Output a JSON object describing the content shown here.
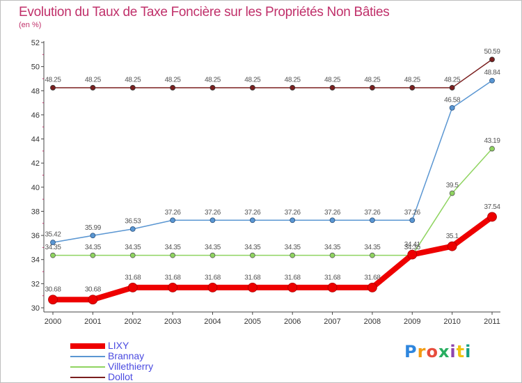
{
  "title": "Evolution du Taux de Taxe Foncière sur les Propriétés Non Bâties",
  "subtitle": "(en %)",
  "logo": "Proxiti",
  "chart_data": {
    "type": "line",
    "title": "Evolution du Taux de Taxe Foncière sur les Propriétés Non Bâties",
    "ylabel": "(en %)",
    "xlabel": "",
    "categories": [
      "2000",
      "2001",
      "2002",
      "2003",
      "2004",
      "2005",
      "2006",
      "2007",
      "2008",
      "2009",
      "2010",
      "2011"
    ],
    "ylim": [
      30,
      52
    ],
    "yticks": [
      30,
      32,
      34,
      36,
      38,
      40,
      42,
      44,
      46,
      48,
      50,
      52
    ],
    "grid": false,
    "legend_position": "bottom-left",
    "series": [
      {
        "name": "Dollot",
        "color": "#7a1e1e",
        "values": [
          48.25,
          48.25,
          48.25,
          48.25,
          48.25,
          48.25,
          48.25,
          48.25,
          48.25,
          48.25,
          48.25,
          50.59
        ],
        "labels": [
          "48.25",
          "48.25",
          "48.25",
          "48.25",
          "48.25",
          "48.25",
          "48.25",
          "48.25",
          "48.25",
          "48.25",
          "48.25",
          "50.59"
        ]
      },
      {
        "name": "Villethierry",
        "color": "#8fd460",
        "values": [
          34.35,
          34.35,
          34.35,
          34.35,
          34.35,
          34.35,
          34.35,
          34.35,
          34.35,
          34.35,
          39.5,
          43.19
        ],
        "labels": [
          "34.35",
          "34.35",
          "34.35",
          "34.35",
          "34.35",
          "34.35",
          "34.35",
          "34.35",
          "34.35",
          "34.35",
          "39.5",
          "43.19"
        ]
      },
      {
        "name": "Brannay",
        "color": "#5a96d2",
        "values": [
          35.42,
          35.99,
          36.53,
          37.26,
          37.26,
          37.26,
          37.26,
          37.26,
          37.26,
          37.26,
          46.58,
          48.84
        ],
        "labels": [
          "35.42",
          "35.99",
          "36.53",
          "37.26",
          "37.26",
          "37.26",
          "37.26",
          "37.26",
          "37.26",
          "37.26",
          "46.58",
          "48.84"
        ]
      },
      {
        "name": "LIXY",
        "color": "#ee0000",
        "values": [
          30.68,
          30.68,
          31.68,
          31.68,
          31.68,
          31.68,
          31.68,
          31.68,
          31.68,
          34.41,
          35.1,
          37.54
        ],
        "labels": [
          "30.68",
          "30.68",
          "31.68",
          "31.68",
          "31.68",
          "31.68",
          "31.68",
          "31.68",
          "31.68",
          "34.41",
          "35.1",
          "37.54"
        ]
      }
    ],
    "legend": [
      "LIXY",
      "Brannay",
      "Villethierry",
      "Dollot"
    ]
  }
}
